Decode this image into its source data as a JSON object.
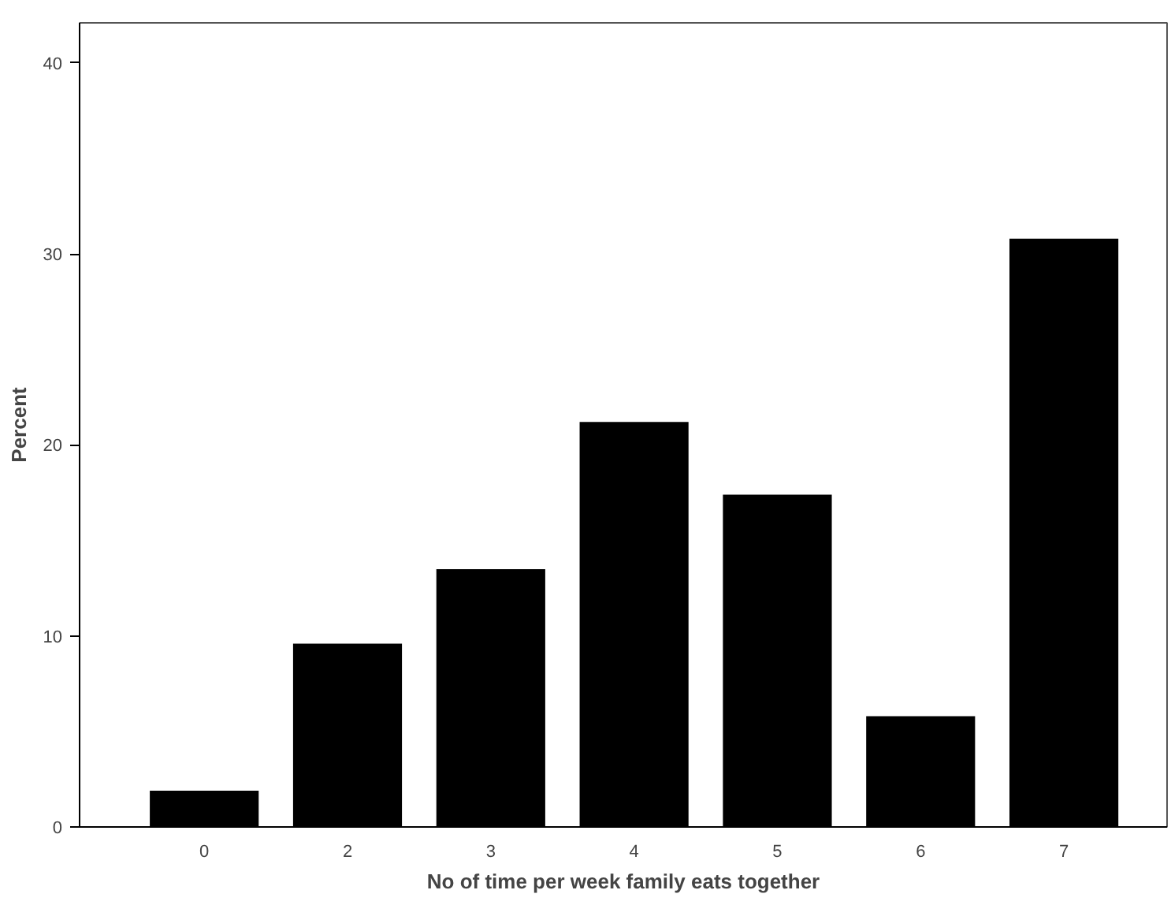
{
  "chart_data": {
    "type": "bar",
    "xlabel": "No of time per week family eats together",
    "ylabel": "Percent",
    "categories": [
      "0",
      "2",
      "3",
      "4",
      "5",
      "6",
      "7"
    ],
    "values": [
      1.9,
      9.6,
      13.5,
      21.2,
      17.4,
      5.8,
      30.8
    ],
    "color": "#000000",
    "ylim": [
      0,
      42.1
    ],
    "yticks": [
      0,
      10,
      20,
      30,
      40
    ],
    "grid": false
  }
}
